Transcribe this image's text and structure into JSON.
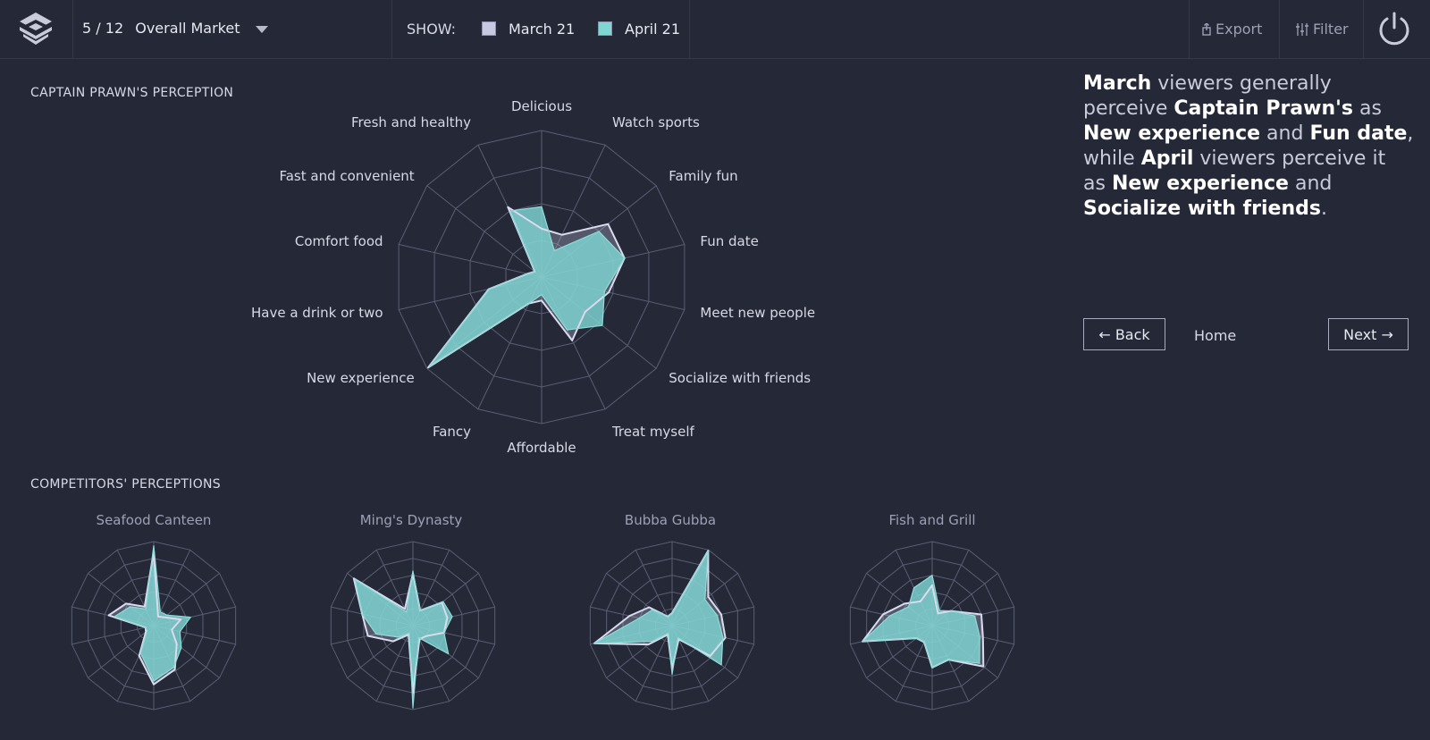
{
  "header": {
    "page_current": "5",
    "page_total": "12",
    "market": "Overall Market",
    "show_label": "SHOW:",
    "legend": [
      {
        "label": "March 21",
        "color": "#c7c9e2"
      },
      {
        "label": "April 21",
        "color": "#7fd6d3"
      }
    ],
    "export_label": "Export",
    "filter_label": "Filter"
  },
  "main_chart": {
    "section_title": "CAPTAIN PRAWN'S PERCEPTION"
  },
  "competitors": {
    "section_title": "COMPETITORS' PERCEPTIONS"
  },
  "insight_parts": [
    {
      "text": "March",
      "bold": true
    },
    {
      "text": " viewers generally perceive ",
      "bold": false
    },
    {
      "text": "Captain Prawn's",
      "bold": true
    },
    {
      "text": " as ",
      "bold": false
    },
    {
      "text": "New experience",
      "bold": true
    },
    {
      "text": " and ",
      "bold": false
    },
    {
      "text": "Fun date",
      "bold": true
    },
    {
      "text": ", while ",
      "bold": false
    },
    {
      "text": "April",
      "bold": true
    },
    {
      "text": " viewers perceive it as ",
      "bold": false
    },
    {
      "text": "New experience",
      "bold": true
    },
    {
      "text": " and ",
      "bold": false
    },
    {
      "text": "Socialize with friends",
      "bold": true
    },
    {
      "text": ".",
      "bold": false
    }
  ],
  "nav": {
    "back": "← Back",
    "home": "Home",
    "next": "Next →"
  },
  "colors": {
    "march": "#c7c9e2",
    "april": "#7fd6d3",
    "grid": "#5a5e72",
    "background": "#252837"
  },
  "chart_data": [
    {
      "type": "radar",
      "title": "",
      "axes": [
        "Delicious",
        "Watch sports",
        "Family fun",
        "Fun date",
        "Meet new people",
        "Socialize with friends",
        "Treat myself",
        "Affordable",
        "Fancy",
        "New experience",
        "Have a drink or two",
        "Comfort food",
        "Fast and convenient",
        "Fresh and healthy"
      ],
      "scale_max": 100,
      "series": [
        {
          "name": "March 21",
          "values": [
            33,
            32,
            58,
            58,
            47,
            38,
            48,
            16,
            20,
            99,
            37,
            10,
            6,
            53
          ]
        },
        {
          "name": "April 21",
          "values": [
            48,
            20,
            50,
            58,
            44,
            53,
            40,
            12,
            20,
            98,
            37,
            10,
            6,
            50
          ]
        }
      ]
    },
    {
      "type": "radar",
      "title": "Seafood Canteen",
      "series": [
        {
          "name": "March 21",
          "values": [
            88,
            12,
            16,
            33,
            22,
            35,
            58,
            70,
            40,
            12,
            10,
            55,
            42,
            25
          ]
        },
        {
          "name": "April 21",
          "values": [
            95,
            18,
            20,
            45,
            32,
            42,
            55,
            66,
            36,
            10,
            10,
            48,
            36,
            22
          ]
        }
      ]
    },
    {
      "type": "radar",
      "title": "Ming's Dynasty",
      "series": [
        {
          "name": "March 21",
          "values": [
            62,
            20,
            44,
            42,
            38,
            20,
            18,
            80,
            12,
            30,
            55,
            62,
            90,
            22
          ]
        },
        {
          "name": "April 21",
          "values": [
            65,
            20,
            46,
            48,
            38,
            54,
            16,
            98,
            10,
            22,
            45,
            62,
            88,
            18
          ]
        }
      ]
    },
    {
      "type": "radar",
      "title": "Bubba Gubba",
      "series": [
        {
          "name": "March 21",
          "values": [
            15,
            99,
            55,
            60,
            65,
            58,
            18,
            52,
            12,
            36,
            95,
            52,
            35,
            12
          ]
        },
        {
          "name": "April 21",
          "values": [
            15,
            99,
            50,
            55,
            62,
            75,
            16,
            58,
            10,
            30,
            95,
            40,
            30,
            12
          ]
        }
      ]
    },
    {
      "type": "radar",
      "title": "Fish and Grill",
      "series": [
        {
          "name": "March 21",
          "values": [
            48,
            16,
            28,
            60,
            62,
            78,
            45,
            50,
            22,
            24,
            85,
            60,
            42,
            32
          ]
        },
        {
          "name": "April 21",
          "values": [
            60,
            20,
            28,
            52,
            58,
            72,
            45,
            50,
            22,
            24,
            85,
            52,
            36,
            50
          ]
        }
      ]
    }
  ]
}
